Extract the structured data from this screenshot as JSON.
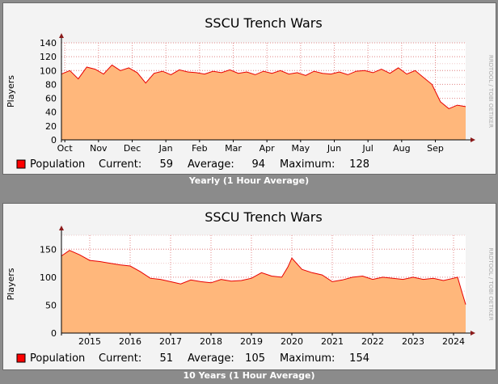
{
  "colors": {
    "background": "#8b8b8b",
    "panel": "#f3f3f3",
    "plot_bg": "#ffffff",
    "area": "#ffb77b",
    "line": "#e80000",
    "grid_minor": "#f0caca",
    "grid_major": "#e38a8a",
    "legend_swatch": "#ff0000"
  },
  "watermark": "RRDTOOL / TOBI OETIKER",
  "chart_data": [
    {
      "type": "area",
      "title": "SSCU Trench Wars",
      "ylabel": "Players",
      "xlabel": "",
      "ylim": [
        0,
        140
      ],
      "yticks": [
        0,
        20,
        40,
        60,
        80,
        100,
        120,
        140
      ],
      "minor_step": 10,
      "x_range": [
        0,
        12
      ],
      "x_ticks": [
        {
          "label": "Oct",
          "x": 0.1
        },
        {
          "label": "Nov",
          "x": 1.1
        },
        {
          "label": "Dec",
          "x": 2.1
        },
        {
          "label": "Jan",
          "x": 3.1
        },
        {
          "label": "Feb",
          "x": 4.1
        },
        {
          "label": "Mar",
          "x": 5.1
        },
        {
          "label": "Apr",
          "x": 6.1
        },
        {
          "label": "May",
          "x": 7.1
        },
        {
          "label": "Jun",
          "x": 8.1
        },
        {
          "label": "Jul",
          "x": 9.1
        },
        {
          "label": "Aug",
          "x": 10.1
        },
        {
          "label": "Sep",
          "x": 11.1
        }
      ],
      "series": [
        {
          "name": "Population",
          "x": [
            0,
            0.25,
            0.5,
            0.75,
            1,
            1.25,
            1.5,
            1.75,
            2,
            2.25,
            2.5,
            2.75,
            3,
            3.25,
            3.5,
            3.75,
            4,
            4.25,
            4.5,
            4.75,
            5,
            5.25,
            5.5,
            5.75,
            6,
            6.25,
            6.5,
            6.75,
            7,
            7.25,
            7.5,
            7.75,
            8,
            8.25,
            8.5,
            8.75,
            9,
            9.25,
            9.5,
            9.75,
            10,
            10.25,
            10.5,
            10.75,
            11,
            11.1,
            11.25,
            11.5,
            11.75,
            12
          ],
          "values": [
            95,
            100,
            88,
            105,
            102,
            95,
            108,
            100,
            104,
            97,
            82,
            96,
            99,
            94,
            101,
            98,
            97,
            95,
            99,
            97,
            101,
            96,
            98,
            94,
            99,
            96,
            100,
            95,
            97,
            93,
            99,
            96,
            95,
            98,
            94,
            99,
            100,
            97,
            102,
            96,
            104,
            95,
            100,
            90,
            80,
            70,
            55,
            45,
            50,
            48
          ]
        }
      ],
      "legend": {
        "label": "Population",
        "current": "59",
        "average": "94",
        "maximum": "128"
      },
      "caption": "Yearly (1 Hour Average)"
    },
    {
      "type": "area",
      "title": "SSCU Trench Wars",
      "ylabel": "Players",
      "xlabel": "",
      "ylim": [
        0,
        175
      ],
      "yticks": [
        0,
        50,
        100,
        150
      ],
      "minor_step": 25,
      "x_range": [
        2014.3,
        2024.3
      ],
      "x_ticks": [
        {
          "label": "2015",
          "x": 2015
        },
        {
          "label": "2016",
          "x": 2016
        },
        {
          "label": "2017",
          "x": 2017
        },
        {
          "label": "2018",
          "x": 2018
        },
        {
          "label": "2019",
          "x": 2019
        },
        {
          "label": "2020",
          "x": 2020
        },
        {
          "label": "2021",
          "x": 2021
        },
        {
          "label": "2022",
          "x": 2022
        },
        {
          "label": "2023",
          "x": 2023
        },
        {
          "label": "2024",
          "x": 2024
        }
      ],
      "series": [
        {
          "name": "Population",
          "x": [
            2014.3,
            2014.5,
            2014.75,
            2015,
            2015.25,
            2015.5,
            2015.75,
            2016,
            2016.25,
            2016.5,
            2016.75,
            2017,
            2017.25,
            2017.5,
            2017.75,
            2018,
            2018.25,
            2018.5,
            2018.75,
            2019,
            2019.25,
            2019.5,
            2019.75,
            2019.9,
            2020,
            2020.25,
            2020.5,
            2020.75,
            2021,
            2021.25,
            2021.5,
            2021.75,
            2022,
            2022.25,
            2022.5,
            2022.75,
            2023,
            2023.25,
            2023.5,
            2023.75,
            2024,
            2024.1,
            2024.2,
            2024.3
          ],
          "values": [
            138,
            148,
            140,
            130,
            128,
            125,
            122,
            120,
            110,
            98,
            96,
            92,
            88,
            95,
            92,
            90,
            96,
            93,
            94,
            98,
            108,
            102,
            100,
            118,
            134,
            114,
            108,
            104,
            92,
            95,
            100,
            102,
            96,
            100,
            98,
            96,
            100,
            96,
            98,
            94,
            98,
            100,
            75,
            51
          ]
        }
      ],
      "legend": {
        "label": "Population",
        "current": "51",
        "average": "105",
        "maximum": "154"
      },
      "caption": "10 Years (1 Hour Average)"
    }
  ],
  "legend_labels": {
    "current": "Current:",
    "average": "Average:",
    "maximum": "Maximum:"
  }
}
